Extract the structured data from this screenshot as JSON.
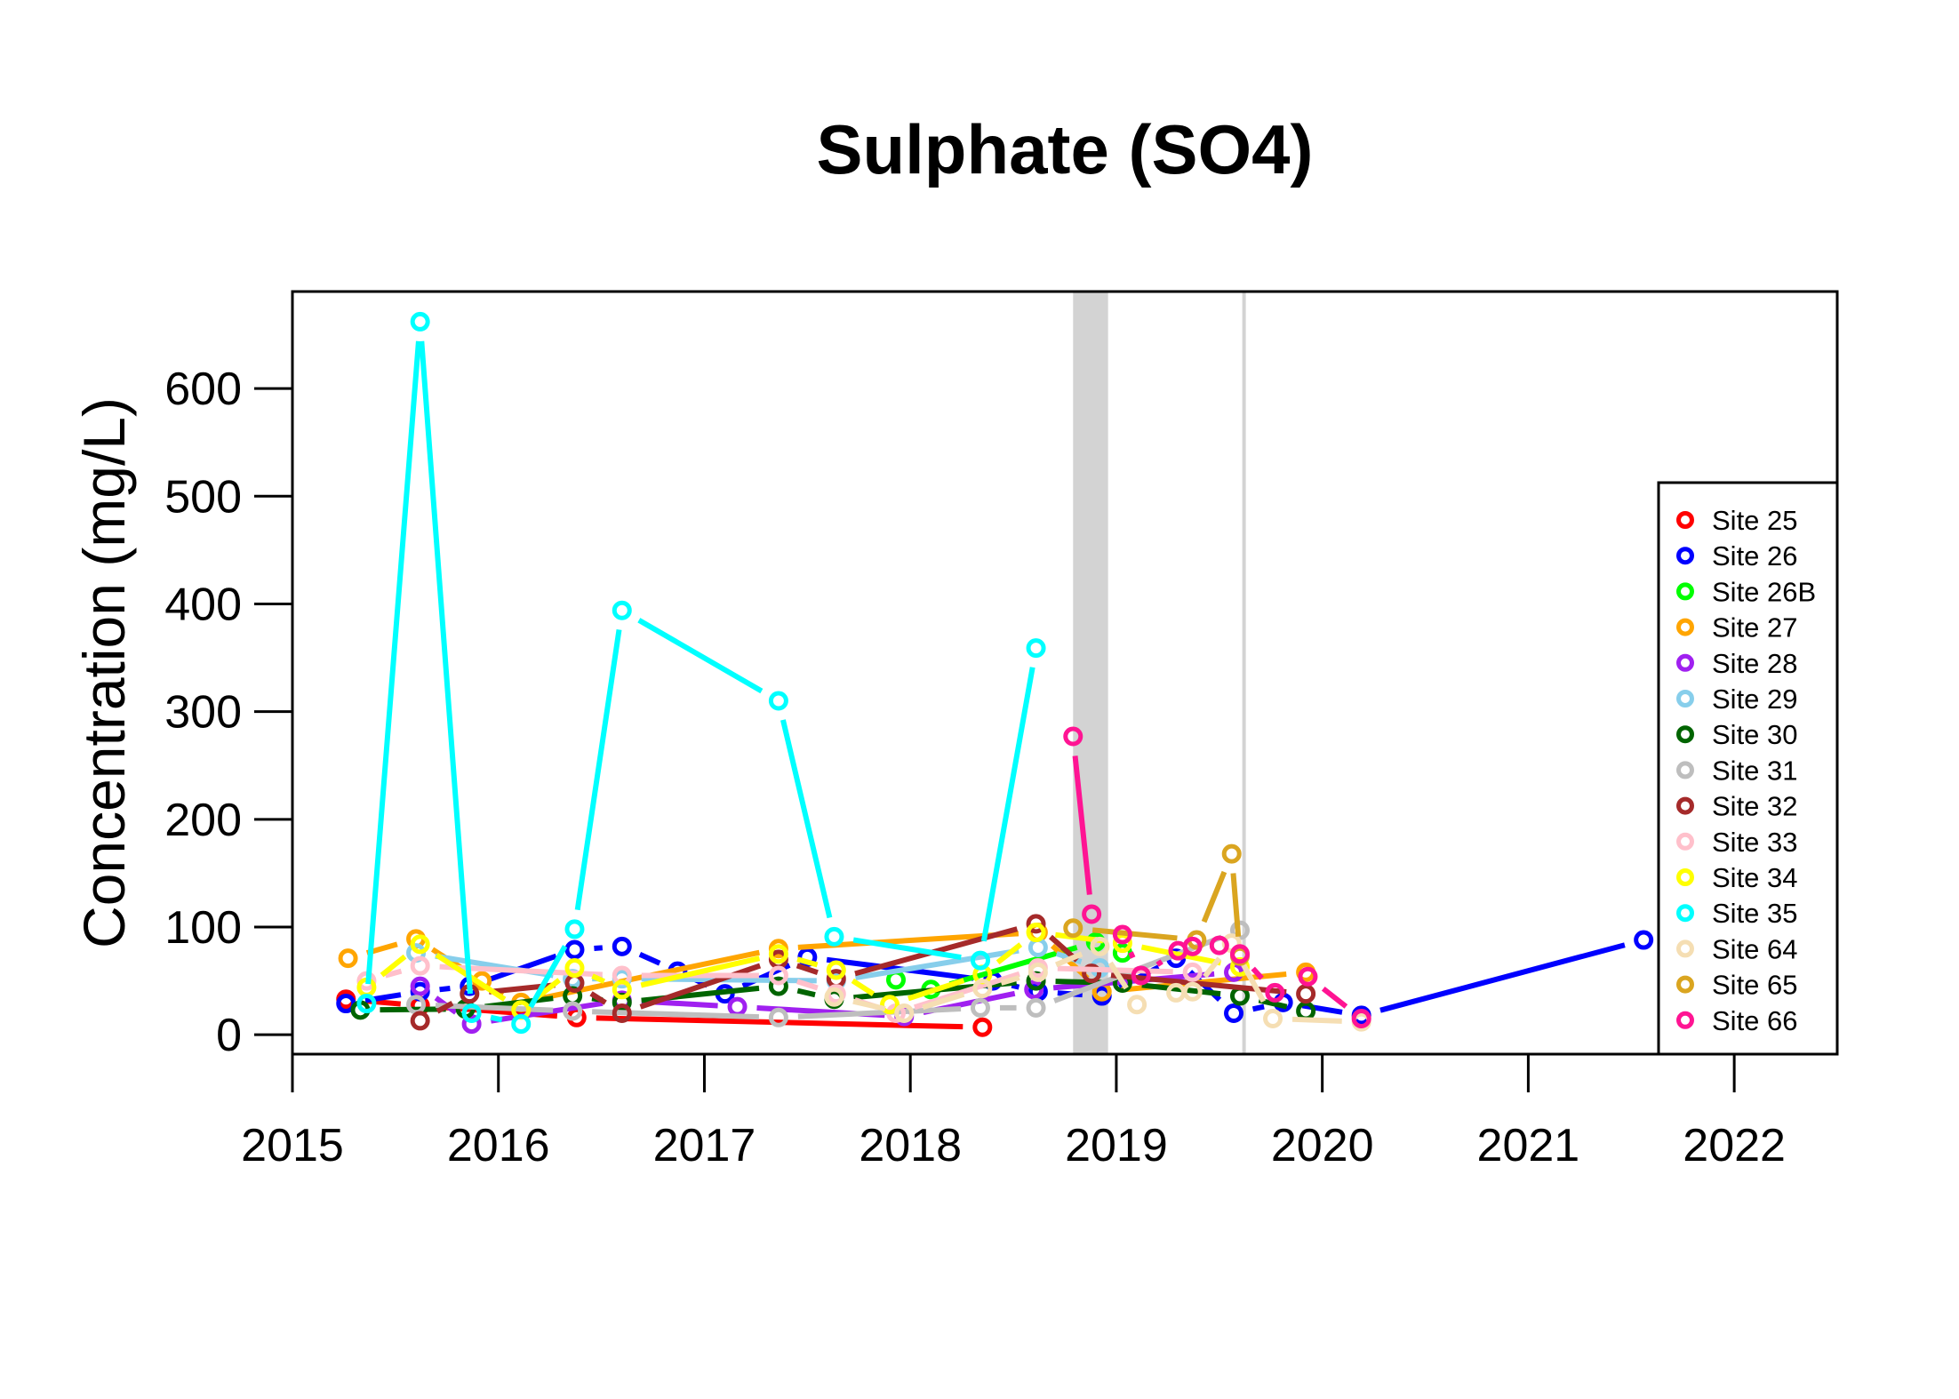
{
  "chart_data": {
    "type": "line",
    "title": "Sulphate (SO4)",
    "xlabel": "",
    "ylabel": "Concentration (mg/L)",
    "xlim": [
      2015.0,
      2022.5
    ],
    "ylim": [
      -18,
      690
    ],
    "x_ticks": [
      2015,
      2016,
      2017,
      2018,
      2019,
      2020,
      2021,
      2022
    ],
    "x_tick_labels": [
      "2015",
      "2016",
      "2017",
      "2018",
      "2019",
      "2020",
      "2021",
      "2022"
    ],
    "y_ticks": [
      0,
      100,
      200,
      300,
      400,
      500,
      600
    ],
    "y_tick_labels": [
      "0",
      "100",
      "200",
      "300",
      "400",
      "500",
      "600"
    ],
    "shaded_period": [
      2018.79,
      2018.96
    ],
    "reference_line": 2019.62,
    "legend_position": "right",
    "series": [
      {
        "name": "Site 25",
        "color": "#FF0000",
        "points": [
          [
            2015.26,
            33
          ],
          [
            2015.62,
            27
          ],
          [
            2016.38,
            16
          ],
          [
            2018.35,
            7
          ]
        ]
      },
      {
        "name": "Site 26",
        "color": "#0000FF",
        "points": [
          [
            2015.26,
            29
          ],
          [
            2015.62,
            40
          ],
          [
            2015.86,
            45
          ],
          [
            2016.37,
            79
          ],
          [
            2016.6,
            82
          ],
          [
            2016.87,
            59
          ],
          [
            2017.1,
            38
          ],
          [
            2017.5,
            72
          ],
          [
            2018.4,
            50
          ],
          [
            2018.62,
            40
          ],
          [
            2018.93,
            36
          ],
          [
            2019.29,
            71
          ],
          [
            2019.57,
            20
          ],
          [
            2019.81,
            30
          ],
          [
            2020.19,
            18
          ],
          [
            2021.56,
            88
          ]
        ]
      },
      {
        "name": "Site 26B",
        "color": "#00FF00",
        "points": [
          [
            2017.93,
            51
          ],
          [
            2018.1,
            42
          ],
          [
            2018.9,
            86
          ],
          [
            2019.03,
            76
          ]
        ]
      },
      {
        "name": "Site 27",
        "color": "#FFA500",
        "points": [
          [
            2015.27,
            71
          ],
          [
            2015.6,
            89
          ],
          [
            2015.92,
            50
          ],
          [
            2016.11,
            30
          ],
          [
            2017.36,
            80
          ],
          [
            2018.62,
            95
          ],
          [
            2018.93,
            40
          ],
          [
            2019.92,
            58
          ]
        ]
      },
      {
        "name": "Site 28",
        "color": "#A020F0",
        "points": [
          [
            2015.62,
            45
          ],
          [
            2015.87,
            10
          ],
          [
            2016.6,
            32
          ],
          [
            2017.16,
            26
          ],
          [
            2017.97,
            17
          ],
          [
            2018.6,
            42
          ],
          [
            2019.57,
            58
          ]
        ]
      },
      {
        "name": "Site 29",
        "color": "#87CEEB",
        "points": [
          [
            2015.6,
            76
          ],
          [
            2016.36,
            52
          ],
          [
            2016.6,
            52
          ],
          [
            2017.64,
            50
          ],
          [
            2018.62,
            81
          ],
          [
            2018.92,
            62
          ]
        ]
      },
      {
        "name": "Site 30",
        "color": "#006400",
        "points": [
          [
            2015.33,
            23
          ],
          [
            2015.84,
            24
          ],
          [
            2016.36,
            36
          ],
          [
            2016.6,
            30
          ],
          [
            2017.36,
            45
          ],
          [
            2017.63,
            33
          ],
          [
            2018.61,
            50
          ],
          [
            2019.03,
            48
          ],
          [
            2019.6,
            36
          ],
          [
            2019.92,
            22
          ]
        ]
      },
      {
        "name": "Site 31",
        "color": "#BEBEBE",
        "points": [
          [
            2015.6,
            28
          ],
          [
            2016.36,
            22
          ],
          [
            2017.36,
            16
          ],
          [
            2018.34,
            25
          ],
          [
            2018.61,
            25
          ],
          [
            2019.6,
            97
          ]
        ]
      },
      {
        "name": "Site 32",
        "color": "#A52A2A",
        "points": [
          [
            2015.62,
            13
          ],
          [
            2015.86,
            38
          ],
          [
            2016.37,
            48
          ],
          [
            2016.6,
            20
          ],
          [
            2017.36,
            70
          ],
          [
            2017.64,
            52
          ],
          [
            2018.61,
            103
          ],
          [
            2018.88,
            57
          ],
          [
            2019.92,
            38
          ]
        ]
      },
      {
        "name": "Site 33",
        "color": "#FFC0CB",
        "points": [
          [
            2015.36,
            50
          ],
          [
            2015.62,
            64
          ],
          [
            2016.6,
            55
          ],
          [
            2017.36,
            55
          ],
          [
            2017.64,
            38
          ],
          [
            2017.93,
            20
          ],
          [
            2018.62,
            62
          ],
          [
            2019.37,
            58
          ]
        ]
      },
      {
        "name": "Site 34",
        "color": "#FFFF00",
        "points": [
          [
            2015.36,
            44
          ],
          [
            2015.62,
            84
          ],
          [
            2016.11,
            23
          ],
          [
            2016.37,
            62
          ],
          [
            2016.6,
            42
          ],
          [
            2017.36,
            75
          ],
          [
            2017.64,
            60
          ],
          [
            2017.9,
            28
          ],
          [
            2018.35,
            56
          ],
          [
            2018.61,
            95
          ],
          [
            2019.03,
            85
          ],
          [
            2019.6,
            63
          ]
        ]
      },
      {
        "name": "Site 35",
        "color": "#00FFFF",
        "points": [
          [
            2015.36,
            29
          ],
          [
            2015.62,
            662
          ],
          [
            2015.87,
            20
          ],
          [
            2016.11,
            10
          ],
          [
            2016.37,
            98
          ],
          [
            2016.6,
            394
          ],
          [
            2017.36,
            310
          ],
          [
            2017.63,
            91
          ],
          [
            2018.34,
            69
          ],
          [
            2018.61,
            359
          ]
        ]
      },
      {
        "name": "Site 64",
        "color": "#F5DEB3",
        "points": [
          [
            2017.63,
            35
          ],
          [
            2017.97,
            20
          ],
          [
            2018.35,
            43
          ],
          [
            2018.62,
            58
          ],
          [
            2018.92,
            82
          ],
          [
            2019.1,
            28
          ],
          [
            2019.29,
            39
          ],
          [
            2019.37,
            40
          ],
          [
            2019.56,
            85
          ],
          [
            2019.76,
            15
          ],
          [
            2020.19,
            12
          ]
        ]
      },
      {
        "name": "Site 65",
        "color": "#DAA520",
        "points": [
          [
            2018.79,
            99
          ],
          [
            2019.39,
            88
          ],
          [
            2019.56,
            168
          ],
          [
            2019.6,
            73
          ]
        ]
      },
      {
        "name": "Site 66",
        "color": "#FF1493",
        "points": [
          [
            2018.79,
            277
          ],
          [
            2018.88,
            112
          ],
          [
            2019.03,
            93
          ],
          [
            2019.12,
            55
          ],
          [
            2019.3,
            78
          ],
          [
            2019.37,
            82
          ],
          [
            2019.5,
            83
          ],
          [
            2019.6,
            75
          ],
          [
            2019.77,
            39
          ],
          [
            2019.93,
            54
          ],
          [
            2020.19,
            15
          ]
        ]
      }
    ]
  }
}
